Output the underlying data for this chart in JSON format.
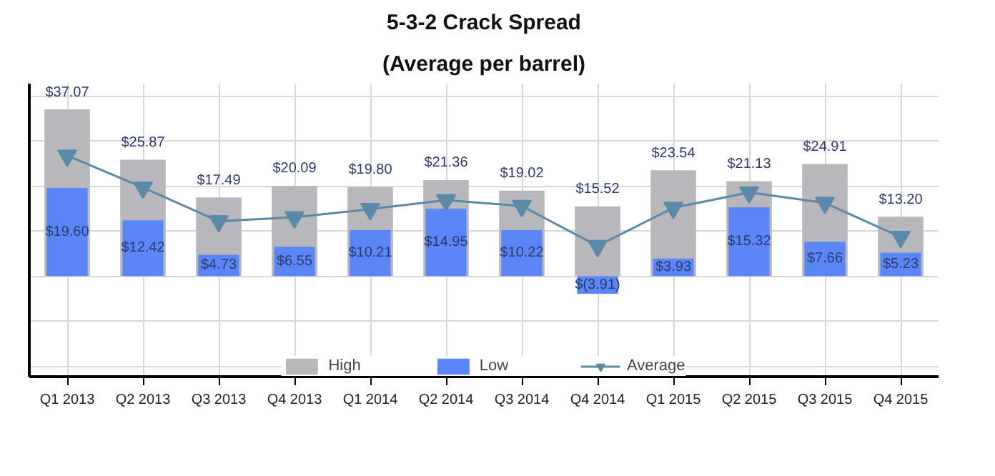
{
  "chart_data": {
    "type": "bar",
    "title": "5-3-2 Crack Spread",
    "subtitle": "(Average per barrel)",
    "categories": [
      "Q1 2013",
      "Q2 2013",
      "Q3 2013",
      "Q4 2013",
      "Q1 2014",
      "Q2 2014",
      "Q3 2014",
      "Q4 2014",
      "Q1 2015",
      "Q2 2015",
      "Q3 2015",
      "Q4 2015"
    ],
    "series": [
      {
        "name": "High",
        "color": "#b8b8bc",
        "values": [
          37.07,
          25.87,
          17.49,
          20.09,
          19.8,
          21.36,
          19.02,
          15.52,
          23.54,
          21.13,
          24.91,
          13.2
        ],
        "value_labels": [
          "$37.07",
          "$25.87",
          "$17.49",
          "$20.09",
          "$19.80",
          "$21.36",
          "$19.02",
          "$15.52",
          "$23.54",
          "$21.13",
          "$24.91",
          "$13.20"
        ]
      },
      {
        "name": "Low",
        "color": "#5b86f7",
        "values": [
          19.6,
          12.42,
          4.73,
          6.55,
          10.21,
          14.95,
          10.22,
          -3.91,
          3.93,
          15.32,
          7.66,
          5.23
        ],
        "value_labels": [
          "$19.60",
          "$12.42",
          "$4.73",
          "$6.55",
          "$10.21",
          "$14.95",
          "$10.22",
          "$(3.91)",
          "$3.93",
          "$15.32",
          "$7.66",
          "$5.23"
        ]
      },
      {
        "name": "Average",
        "type": "line",
        "color": "#5a8aa8",
        "marker": "triangle",
        "values": [
          26.8,
          19.7,
          12.2,
          13.1,
          14.9,
          16.9,
          15.6,
          6.7,
          15.2,
          18.6,
          16.3,
          8.7
        ]
      }
    ],
    "tick_labels": "x",
    "grid": true,
    "legend": "bottom"
  }
}
